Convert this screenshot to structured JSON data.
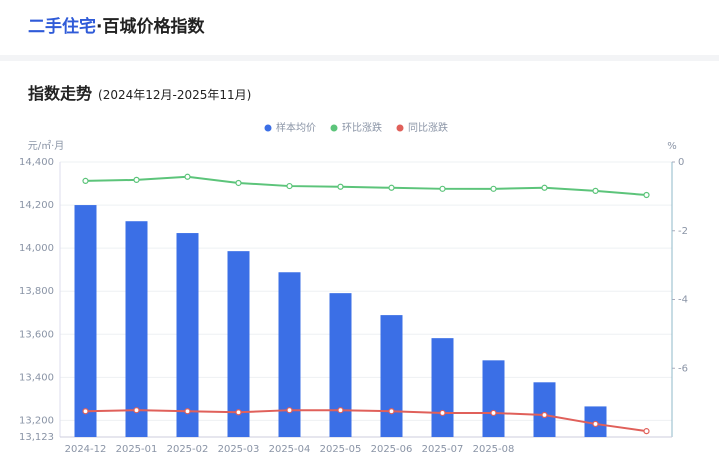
{
  "header": {
    "title_highlight": "二手住宅",
    "title_rest": "·百城价格指数"
  },
  "section": {
    "title": "指数走势",
    "range": "(2024年12月-2025年11月)"
  },
  "chart_data": {
    "type": "bar-line",
    "y_label": "元/㎡·月",
    "y2_label": "%",
    "categories": [
      "2024-12",
      "2025-01",
      "2025-02",
      "2025-03",
      "2025-04",
      "2025-05",
      "2025-06",
      "2025-07",
      "2025-08",
      null,
      null,
      null
    ],
    "ylim": [
      13123,
      14400
    ],
    "yticks": [
      {
        "value": 13123,
        "label": "13,123"
      },
      {
        "value": 13200,
        "label": "13,200"
      },
      {
        "value": 13400,
        "label": "13,400"
      },
      {
        "value": 13600,
        "label": "13,600"
      },
      {
        "value": 13800,
        "label": "13,800"
      },
      {
        "value": 14000,
        "label": "14,000"
      },
      {
        "value": 14200,
        "label": "14,200"
      },
      {
        "value": 14400,
        "label": "14,400"
      }
    ],
    "y2lim": [
      -8,
      0
    ],
    "y2ticks": [
      0,
      -2,
      -4,
      -6
    ],
    "grid": true,
    "series": [
      {
        "name": "样本均价",
        "type": "bar",
        "color": "#3b6fe6",
        "values": [
          14200,
          14125,
          14070,
          13986,
          13888,
          13791,
          13689,
          13582,
          13479,
          13377,
          13265,
          null
        ]
      },
      {
        "name": "环比涨跌",
        "type": "line",
        "axis": "y2",
        "color": "#5cc47a",
        "values": [
          -0.55,
          -0.52,
          -0.43,
          -0.61,
          -0.7,
          -0.72,
          -0.75,
          -0.78,
          -0.78,
          -0.75,
          -0.84,
          -0.96
        ]
      },
      {
        "name": "同比涨跌",
        "type": "line",
        "axis": "y2",
        "color": "#e0605a",
        "values": [
          -7.25,
          -7.22,
          -7.25,
          -7.28,
          -7.22,
          -7.22,
          -7.25,
          -7.3,
          -7.3,
          -7.36,
          -7.62,
          -7.83
        ]
      }
    ]
  }
}
